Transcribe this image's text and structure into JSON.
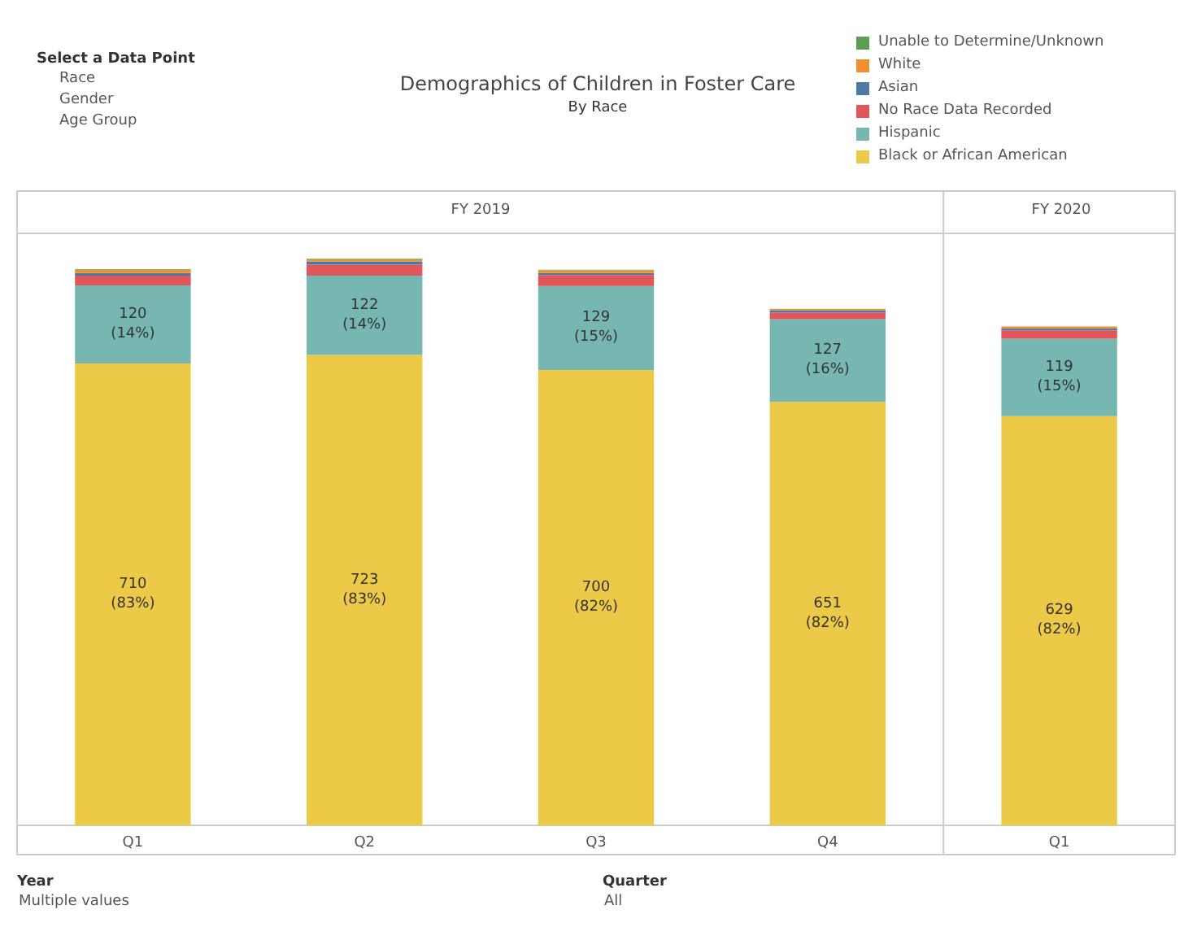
{
  "chart_data": {
    "type": "bar",
    "title": "Demographics of Children in Foster Care",
    "subtitle": "By Race",
    "categories": [
      "Q1",
      "Q2",
      "Q3",
      "Q4",
      "Q1"
    ],
    "stacked": true,
    "ylim": [
      0,
      910
    ],
    "tick_labels": "x",
    "legend": "top right",
    "series": [
      {
        "name": "Black or African American",
        "color": "#edc948",
        "values": [
          710,
          723,
          700,
          651,
          629
        ],
        "value_labels": [
          "710\n(83%)",
          "723\n(83%)",
          "700\n(82%)",
          "651\n(82%)",
          "629\n(82%)"
        ]
      },
      {
        "name": "Hispanic",
        "color": "#76b7b2",
        "values": [
          120,
          122,
          129,
          127,
          119
        ],
        "value_labels": [
          "120\n(14%)",
          "122\n(14%)",
          "129\n(15%)",
          "127\n(16%)",
          "119\n(15%)"
        ]
      },
      {
        "name": "No Race Data Recorded",
        "color": "#e15759",
        "values": [
          15,
          17,
          17,
          10,
          13
        ]
      },
      {
        "name": "Asian",
        "color": "#4e79a7",
        "values": [
          4,
          5,
          3,
          4,
          3
        ]
      },
      {
        "name": "White",
        "color": "#f28e2b",
        "values": [
          5,
          3,
          4,
          2,
          3
        ]
      },
      {
        "name": "Unable to Determine/Unknown",
        "color": "#59a14f",
        "values": [
          1,
          1,
          1,
          0,
          0
        ]
      }
    ],
    "annotations": [
      "FY 2019",
      "FY 2020",
      "Select a Data Point",
      "Race",
      "Gender",
      "Age Group",
      "Year",
      "Multiple values",
      "Quarter",
      "All"
    ]
  }
}
